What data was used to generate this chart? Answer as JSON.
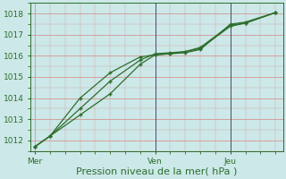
{
  "bg_color": "#cce8e8",
  "grid_color": "#d4a0a0",
  "line_color": "#2d6e2d",
  "vline_color": "#4a4a6a",
  "xlabel": "Pression niveau de la mer( hPa )",
  "xtick_labels": [
    "Mer",
    "Ven",
    "Jeu"
  ],
  "xtick_positions": [
    0,
    8,
    13
  ],
  "vline_positions": [
    8,
    13
  ],
  "ylim": [
    1011.5,
    1018.5
  ],
  "yticks": [
    1012,
    1013,
    1014,
    1015,
    1016,
    1017,
    1018
  ],
  "xlim": [
    -0.3,
    16.5
  ],
  "line1_x": [
    0,
    1,
    3,
    5,
    7,
    8,
    9,
    10,
    11,
    13,
    14,
    16
  ],
  "line1_y": [
    1011.7,
    1012.2,
    1013.5,
    1014.8,
    1015.8,
    1016.1,
    1016.15,
    1016.2,
    1016.35,
    1017.4,
    1017.55,
    1018.05
  ],
  "line2_x": [
    0,
    1,
    3,
    5,
    7,
    8,
    9,
    10,
    11,
    13,
    14,
    16
  ],
  "line2_y": [
    1011.7,
    1012.2,
    1014.0,
    1015.2,
    1015.95,
    1016.05,
    1016.1,
    1016.15,
    1016.3,
    1017.5,
    1017.6,
    1018.05
  ],
  "line3_x": [
    0,
    1,
    3,
    5,
    7,
    8,
    9,
    10,
    11,
    13,
    14,
    16
  ],
  "line3_y": [
    1011.7,
    1012.2,
    1013.2,
    1014.2,
    1015.6,
    1016.05,
    1016.1,
    1016.2,
    1016.4,
    1017.45,
    1017.55,
    1018.05
  ],
  "marker": "+",
  "markersize": 3,
  "markeredgewidth": 1.0,
  "linewidth": 0.9,
  "xlabel_fontsize": 8,
  "tick_fontsize": 6.5
}
